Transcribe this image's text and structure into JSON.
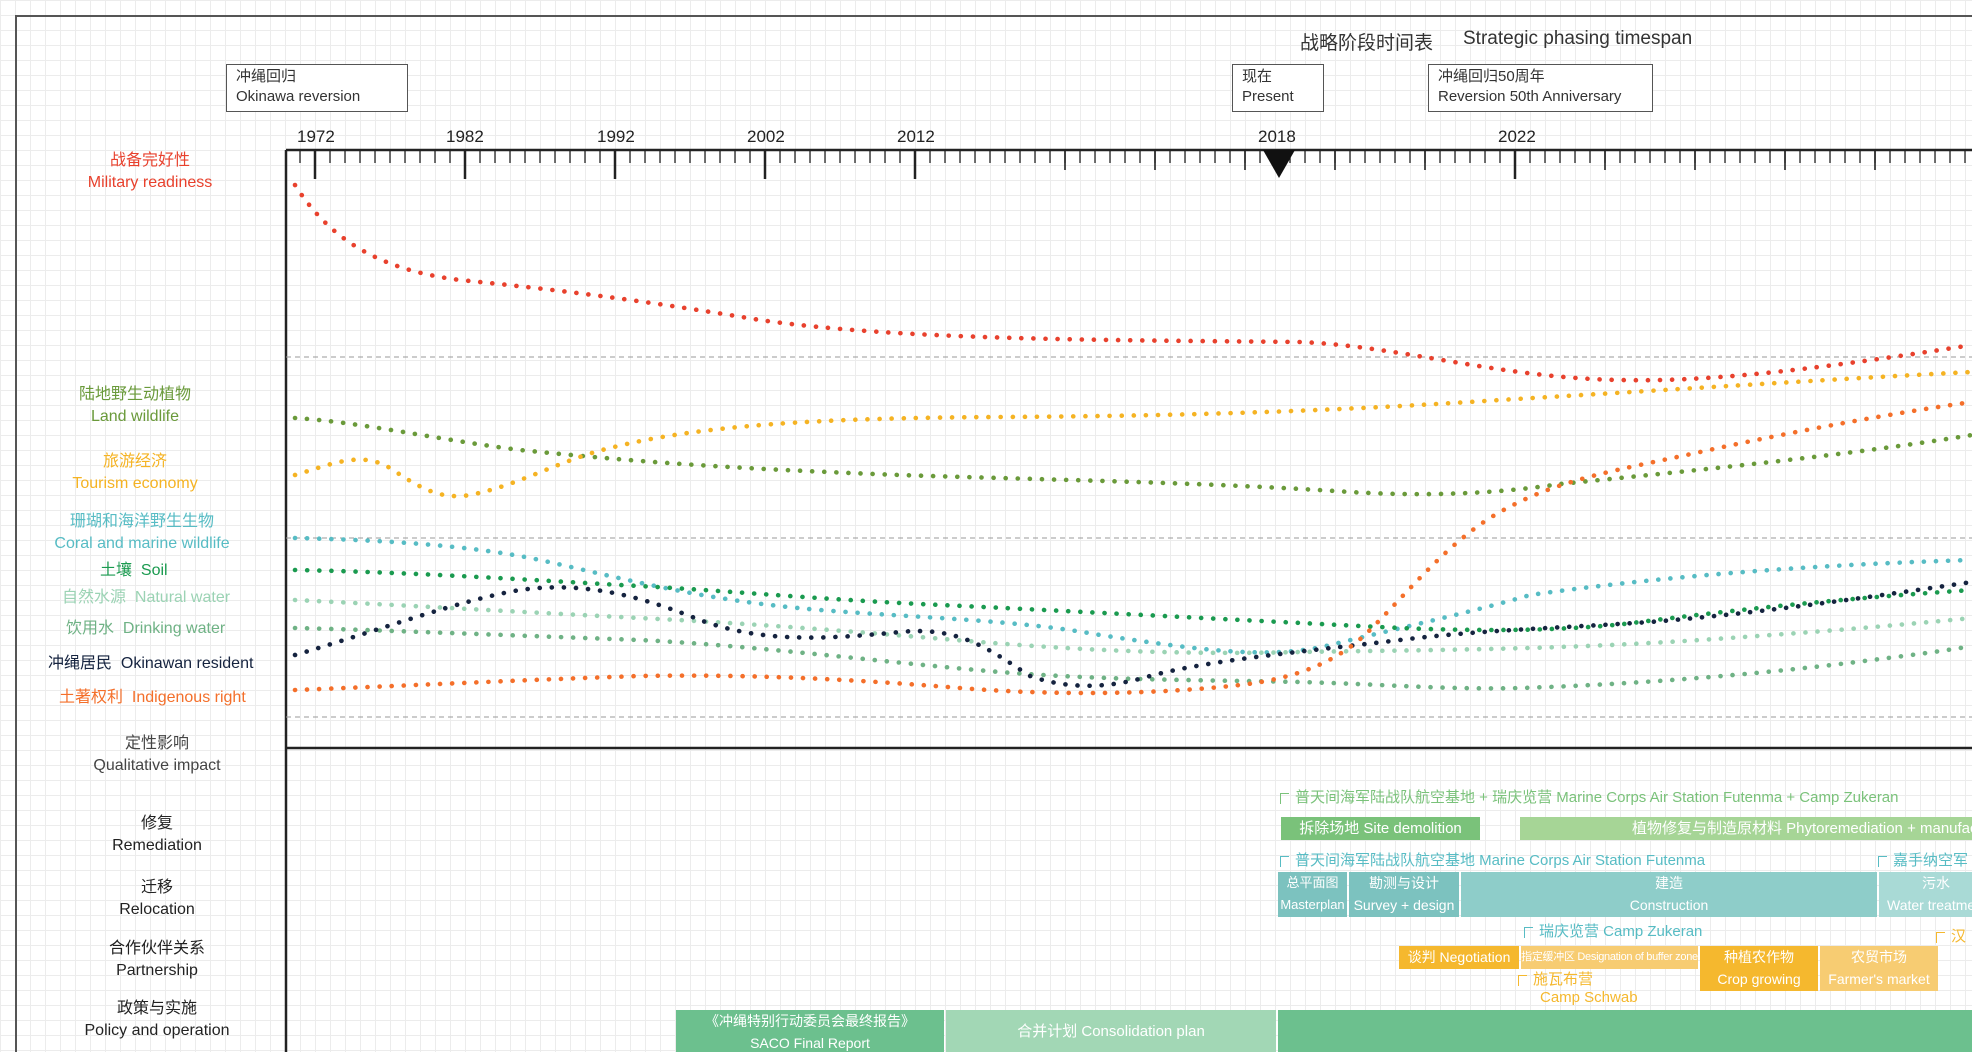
{
  "title": {
    "zh": "战略阶段时间表",
    "en": "Strategic phasing timespan"
  },
  "callouts": {
    "reversion": {
      "zh": "冲绳回归",
      "en": "Okinawa reversion"
    },
    "present": {
      "zh": "现在",
      "en": "Present"
    },
    "anniversary": {
      "zh": "冲绳回归50周年",
      "en": "Reversion 50th Anniversary"
    }
  },
  "axis": {
    "years": [
      "1972",
      "1982",
      "1992",
      "2002",
      "2012",
      "2018",
      "2022"
    ],
    "present_marker": "2018"
  },
  "indicators": [
    {
      "id": "military",
      "zh": "战备完好性",
      "en": "Military readiness",
      "color": "#e8412d"
    },
    {
      "id": "wildlife",
      "zh": "陆地野生动植物",
      "en": "Land wildlife",
      "color": "#6a9a3a"
    },
    {
      "id": "tourism",
      "zh": "旅游经济",
      "en": "Tourism economy",
      "color": "#f5b323"
    },
    {
      "id": "coral",
      "zh": "珊瑚和海洋野生生物",
      "en": "Coral and marine wildlife",
      "color": "#57bcc4"
    },
    {
      "id": "soil",
      "zh": "土壤",
      "en": "Soil",
      "color": "#1a9a4f"
    },
    {
      "id": "natwater",
      "zh": "自然水源",
      "en": "Natural water",
      "color": "#9bd3b4"
    },
    {
      "id": "drinkwater",
      "zh": "饮用水",
      "en": "Drinking water",
      "color": "#6fb285"
    },
    {
      "id": "resident",
      "zh": "冲绳居民",
      "en": "Okinawan resident",
      "color": "#15233f"
    },
    {
      "id": "indigenous",
      "zh": "土著权利",
      "en": "Indigenous right",
      "color": "#f46f2a"
    }
  ],
  "qualitative": {
    "zh": "定性影响",
    "en": "Qualitative impact"
  },
  "rows": {
    "remediation": {
      "zh": "修复",
      "en": "Remediation"
    },
    "relocation": {
      "zh": "迁移",
      "en": "Relocation"
    },
    "partnership": {
      "zh": "合作伙伴关系",
      "en": "Partnership"
    },
    "policy": {
      "zh": "政策与实施",
      "en": "Policy and operation"
    }
  },
  "annotations": {
    "futenma_zukeran": "普天间海军陆战队航空基地 + 瑞庆览营  Marine Corps Air Station Futenma + Camp Zukeran",
    "futenma": "普天间海军陆战队航空基地  Marine Corps Air Station Futenma",
    "kadena": "嘉手纳空军",
    "zukeran": "瑞庆览营  Camp Zukeran",
    "schwab_zh": "施瓦布营",
    "schwab_en": "Camp Schwab",
    "han": "汉"
  },
  "phases": {
    "site_demolition": "拆除场地  Site demolition",
    "phyto": "植物修复与制造原材料  Phytoremediation + manufacturing",
    "masterplan_zh": "总平面图",
    "masterplan_en": "Masterplan",
    "survey_zh": "勘测与设计",
    "survey_en": "Survey + design",
    "construction_zh": "建造",
    "construction_en": "Construction",
    "water_zh": "污水",
    "water_en": "Water treatment",
    "negotiation": "谈判 Negotiation",
    "buffer": "指定缓冲区 Designation of buffer zone",
    "crop_zh": "种植农作物",
    "crop_en": "Crop growing",
    "market_zh": "农贸市场",
    "market_en": "Farmer's market",
    "saco_zh": "《冲绳特别行动委员会最终报告》",
    "saco_en": "SACO Final Report",
    "consolidation": "合并计划  Consolidation plan"
  },
  "colors": {
    "remediation_dark": "#7ac27a",
    "remediation_light": "#a6d596",
    "relocation": "#8ecdc9",
    "relocation_dark": "#7cc2bf",
    "partnership": "#f5b82e",
    "partnership_light": "#f7cc72",
    "policy_dark": "#6cc08e",
    "policy_light": "#a2d7b5"
  }
}
